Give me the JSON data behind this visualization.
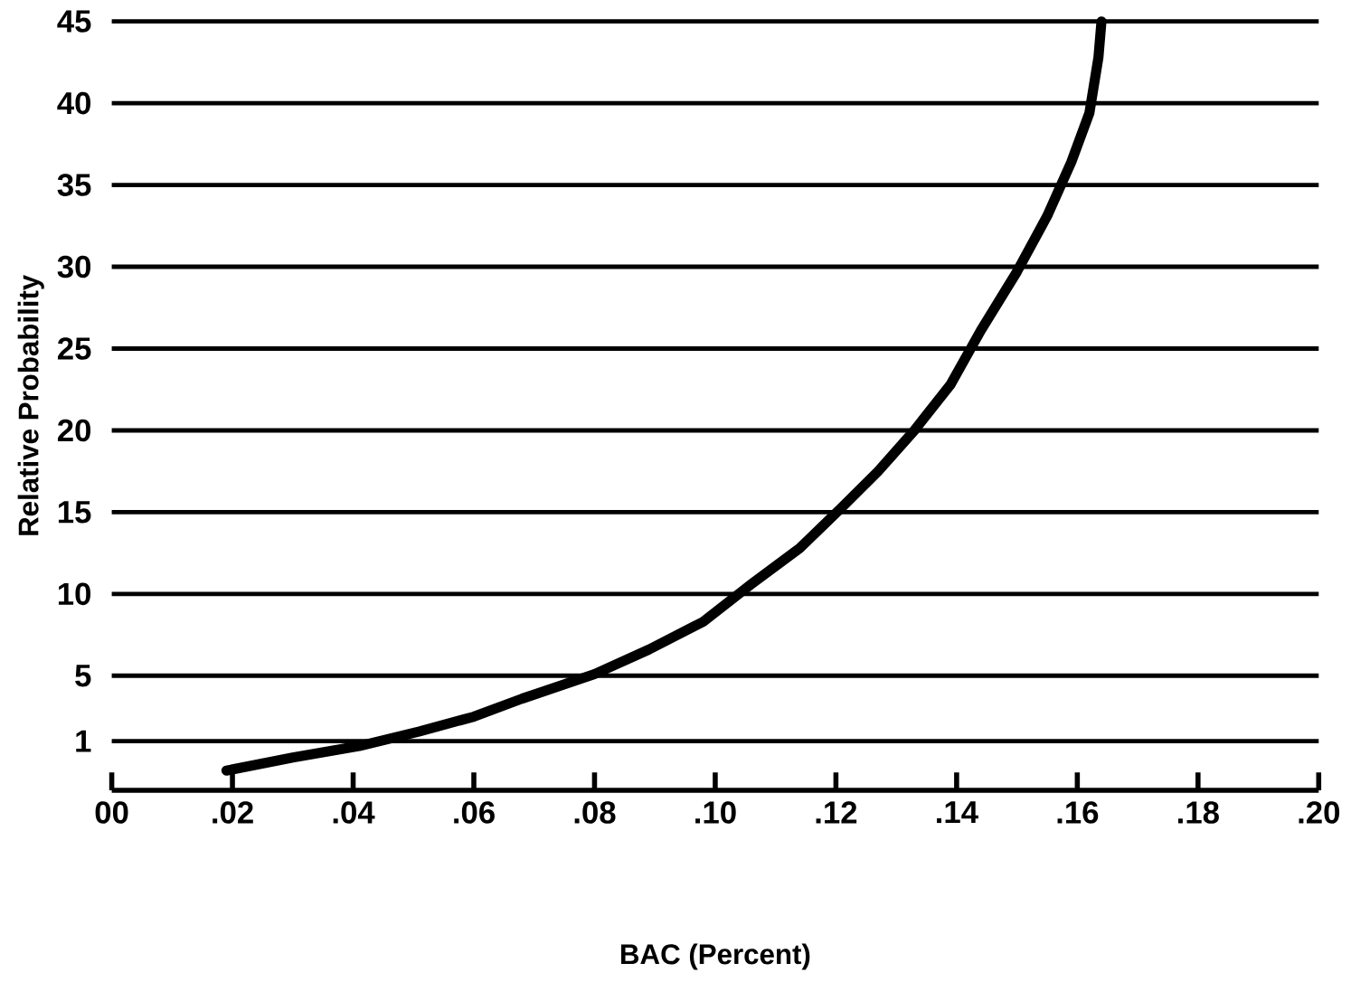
{
  "chart_data": {
    "type": "line",
    "xlabel": "BAC (Percent)",
    "ylabel": "Relative Probability",
    "series": [
      {
        "color": "#000000",
        "x": [
          0.019,
          0.03,
          0.041,
          0.051,
          0.06,
          0.068,
          0.08,
          0.089,
          0.098,
          0.106,
          0.114,
          0.121,
          0.127,
          0.133,
          0.139,
          0.144,
          0.15,
          0.155,
          0.159,
          0.162,
          0.1635,
          0.164
        ],
        "values": [
          -0.8,
          0,
          0.7,
          1.6,
          2.5,
          3.6,
          5.1,
          6.6,
          8.3,
          10.6,
          12.8,
          15.3,
          17.5,
          20,
          22.8,
          26.1,
          29.7,
          33.1,
          36.4,
          39.4,
          42.8,
          45
        ]
      }
    ],
    "xlim": [
      0,
      0.2
    ],
    "xticks": [
      {
        "value": 0,
        "label": "00"
      },
      {
        "value": 0.02,
        "label": ".02"
      },
      {
        "value": 0.04,
        "label": ".04"
      },
      {
        "value": 0.06,
        "label": ".06"
      },
      {
        "value": 0.08,
        "label": ".08"
      },
      {
        "value": 0.1,
        "label": ".10"
      },
      {
        "value": 0.12,
        "label": ".12"
      },
      {
        "value": 0.14,
        "label": ".14"
      },
      {
        "value": 0.16,
        "label": ".16"
      },
      {
        "value": 0.18,
        "label": ".18"
      },
      {
        "value": 0.2,
        "label": ".20"
      }
    ],
    "ylim": [
      -2,
      45
    ],
    "yticks": [
      1,
      5,
      10,
      15,
      20,
      25,
      30,
      35,
      40,
      45
    ],
    "grid": "y",
    "marker": "none",
    "line_style": "solid"
  }
}
